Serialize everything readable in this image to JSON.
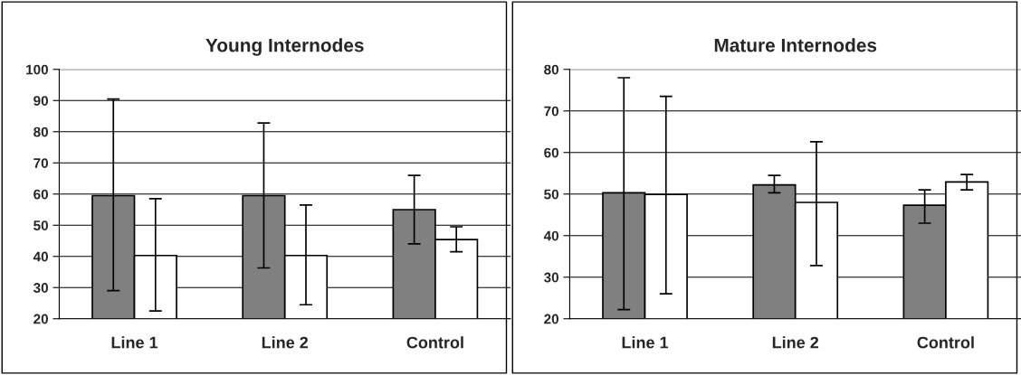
{
  "chart_data": [
    {
      "type": "bar",
      "title": "Young Internodes",
      "categories": [
        "Line 1",
        "Line 2",
        "Control"
      ],
      "ylim": [
        20,
        100
      ],
      "yticks": [
        20,
        30,
        40,
        50,
        60,
        70,
        80,
        90,
        100
      ],
      "grid": "y",
      "legend": false,
      "series": [
        {
          "color": "#808080",
          "values": [
            59.5,
            59.5,
            55
          ],
          "errors": [
            [
              29,
              90.5
            ],
            [
              36.3,
              82.8
            ],
            [
              44,
              66
            ]
          ]
        },
        {
          "color": "#ffffff",
          "values": [
            40.3,
            40.3,
            45.4
          ],
          "errors": [
            [
              22.5,
              58.5
            ],
            [
              24.5,
              56.5
            ],
            [
              41.5,
              49.5
            ]
          ]
        }
      ]
    },
    {
      "type": "bar",
      "title": "Mature Internodes",
      "categories": [
        "Line 1",
        "Line 2",
        "Control"
      ],
      "ylim": [
        20,
        80
      ],
      "yticks": [
        20,
        30,
        40,
        50,
        60,
        70,
        80
      ],
      "grid": "y",
      "legend": false,
      "series": [
        {
          "color": "#808080",
          "values": [
            50.3,
            52.2,
            47.3
          ],
          "errors": [
            [
              22.2,
              78
            ],
            [
              50.3,
              54.5
            ],
            [
              43,
              51
            ]
          ]
        },
        {
          "color": "#ffffff",
          "values": [
            49.9,
            48,
            52.9
          ],
          "errors": [
            [
              26,
              73.5
            ],
            [
              32.8,
              62.6
            ],
            [
              51,
              54.7
            ]
          ]
        }
      ]
    }
  ]
}
